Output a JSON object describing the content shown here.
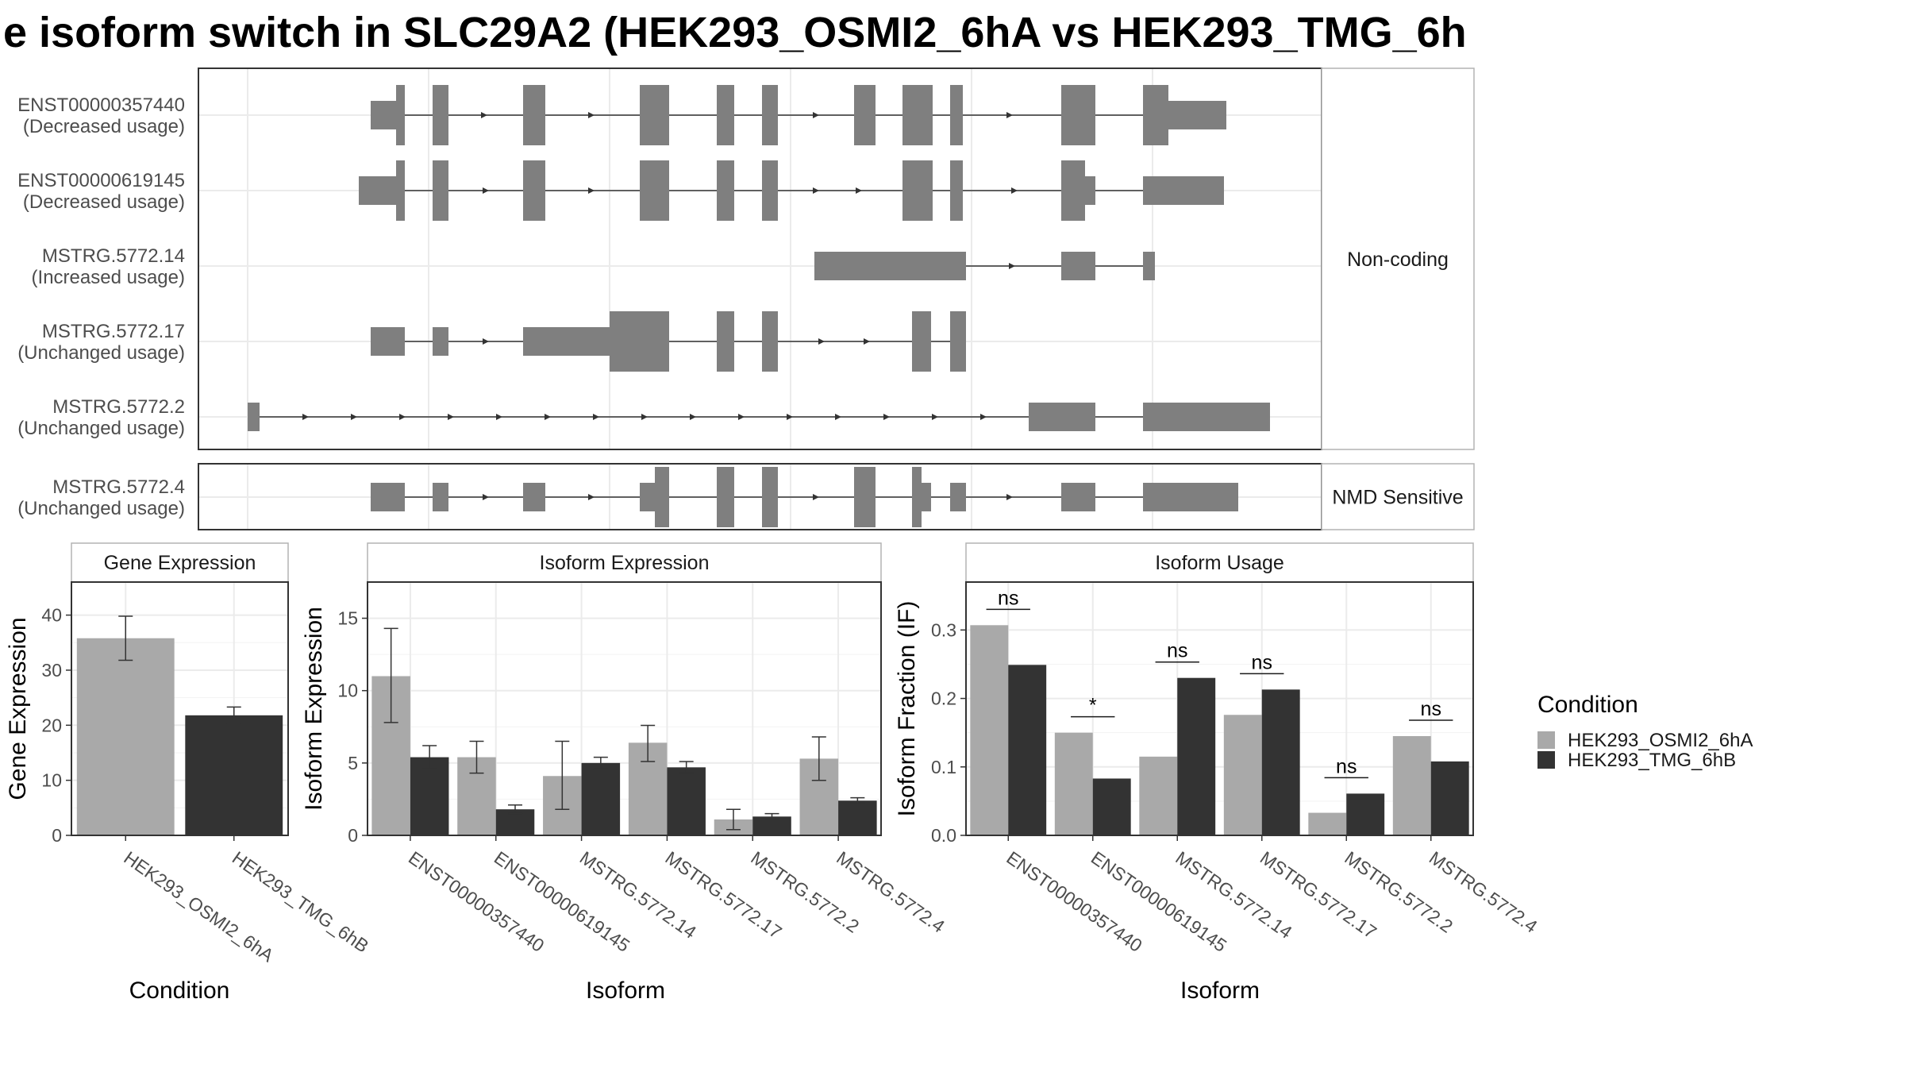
{
  "title": "e isoform switch in SLC29A2 (HEK293_OSMI2_6hA vs HEK293_TMG_6h",
  "structure": {
    "facets": [
      {
        "label": "Non-coding",
        "rows": [
          {
            "name": "ENST00000357440",
            "usage": "(Decreased usage)"
          },
          {
            "name": "ENST00000619145",
            "usage": "(Decreased usage)"
          },
          {
            "name": "MSTRG.5772.14",
            "usage": "(Increased usage)"
          },
          {
            "name": "MSTRG.5772.17",
            "usage": "(Unchanged usage)"
          },
          {
            "name": "MSTRG.5772.2",
            "usage": "(Unchanged usage)"
          }
        ]
      },
      {
        "label": "NMD Sensitive",
        "rows": [
          {
            "name": "MSTRG.5772.4",
            "usage": "(Unchanged usage)"
          }
        ]
      }
    ]
  },
  "legend": {
    "title": "Condition",
    "items": [
      {
        "label": "HEK293_OSMI2_6hA",
        "color": "#a9a9a9"
      },
      {
        "label": "HEK293_TMG_6hB",
        "color": "#333333"
      }
    ]
  },
  "chart_data": [
    {
      "type": "bar",
      "panel": "Gene Expression",
      "xlabel": "Condition",
      "ylabel": "Gene Expression",
      "categories": [
        "HEK293_OSMI2_6hA",
        "HEK293_TMG_6hB"
      ],
      "values": [
        35.8,
        21.8
      ],
      "errors": [
        [
          31.8,
          39.8
        ],
        [
          20.3,
          23.3
        ]
      ],
      "colors": [
        "#a9a9a9",
        "#333333"
      ],
      "ylim": [
        0,
        46
      ],
      "yticks": [
        0,
        10,
        20,
        30,
        40
      ],
      "grid": true
    },
    {
      "type": "bar",
      "panel": "Isoform Expression",
      "xlabel": "Isoform",
      "ylabel": "Isoform Expression",
      "categories": [
        "ENST00000357440",
        "ENST00000619145",
        "MSTRG.5772.14",
        "MSTRG.5772.17",
        "MSTRG.5772.2",
        "MSTRG.5772.4"
      ],
      "series": [
        {
          "name": "HEK293_OSMI2_6hA",
          "values": [
            11.0,
            5.4,
            4.1,
            6.4,
            1.1,
            5.3
          ],
          "errors": [
            [
              7.8,
              14.3
            ],
            [
              4.3,
              6.5
            ],
            [
              1.8,
              6.5
            ],
            [
              5.1,
              7.6
            ],
            [
              0.4,
              1.8
            ],
            [
              3.8,
              6.8
            ]
          ]
        },
        {
          "name": "HEK293_TMG_6hB",
          "values": [
            5.4,
            1.8,
            5.0,
            4.7,
            1.3,
            2.4
          ],
          "errors": [
            [
              4.6,
              6.2
            ],
            [
              1.5,
              2.1
            ],
            [
              4.6,
              5.4
            ],
            [
              4.3,
              5.1
            ],
            [
              1.1,
              1.5
            ],
            [
              2.2,
              2.6
            ]
          ]
        }
      ],
      "ylim": [
        0,
        17.5
      ],
      "yticks": [
        0,
        5,
        10,
        15
      ],
      "grid": true
    },
    {
      "type": "bar",
      "panel": "Isoform Usage",
      "xlabel": "Isoform",
      "ylabel": "Isoform Fraction (IF)",
      "categories": [
        "ENST00000357440",
        "ENST00000619145",
        "MSTRG.5772.14",
        "MSTRG.5772.17",
        "MSTRG.5772.2",
        "MSTRG.5772.4"
      ],
      "series": [
        {
          "name": "HEK293_OSMI2_6hA",
          "values": [
            0.307,
            0.15,
            0.115,
            0.176,
            0.033,
            0.145
          ]
        },
        {
          "name": "HEK293_TMG_6hB",
          "values": [
            0.249,
            0.083,
            0.23,
            0.213,
            0.061,
            0.108
          ]
        }
      ],
      "significance": [
        "ns",
        "*",
        "ns",
        "ns",
        "ns",
        "ns"
      ],
      "ylim": [
        0,
        0.37
      ],
      "yticks": [
        0.0,
        0.1,
        0.2,
        0.3
      ],
      "grid": true
    }
  ]
}
